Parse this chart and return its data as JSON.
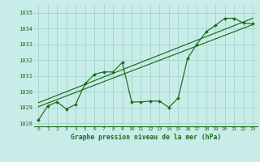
{
  "xlabel": "Graphe pression niveau de la mer (hPa)",
  "bg_color": "#c8ede8",
  "grid_color": "#a8d8d0",
  "line_color": "#1a6b1a",
  "xlim": [
    -0.5,
    23.5
  ],
  "ylim": [
    1027.8,
    1035.5
  ],
  "yticks": [
    1028,
    1029,
    1030,
    1031,
    1032,
    1033,
    1034,
    1035
  ],
  "xticks": [
    0,
    1,
    2,
    3,
    4,
    5,
    6,
    7,
    8,
    9,
    10,
    11,
    12,
    13,
    14,
    15,
    16,
    17,
    18,
    19,
    20,
    21,
    22,
    23
  ],
  "line1_x": [
    0,
    1,
    2,
    3,
    4,
    5,
    6,
    7,
    8,
    9,
    10,
    11,
    12,
    13,
    14,
    15,
    16,
    17,
    18,
    19,
    20,
    21,
    22,
    23
  ],
  "line1_y": [
    1028.2,
    1029.1,
    1029.35,
    1028.9,
    1029.2,
    1030.5,
    1031.1,
    1031.25,
    1031.25,
    1031.85,
    1029.35,
    1029.35,
    1029.4,
    1029.4,
    1029.0,
    1029.6,
    1032.1,
    1033.0,
    1033.8,
    1034.2,
    1034.65,
    1034.65,
    1034.35,
    1034.3
  ],
  "line2_x": [
    0,
    23
  ],
  "line2_y": [
    1029.05,
    1034.25
  ],
  "line3_x": [
    0,
    23
  ],
  "line3_y": [
    1029.3,
    1034.65
  ]
}
